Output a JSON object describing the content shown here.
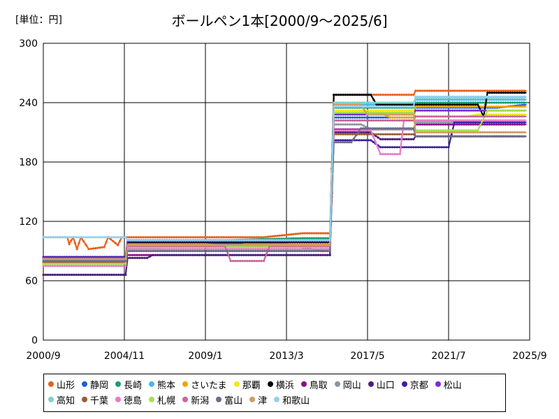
{
  "unit_label": "[単位：円]",
  "title": "ボールペン1本[2000/9～2025/6]",
  "chart_data": {
    "type": "line",
    "title": "ボールペン1本[2000/9～2025/6]",
    "xlabel": "",
    "ylabel": "",
    "ylim": [
      0,
      300
    ],
    "xlim": [
      2000.667,
      2025.667
    ],
    "grid": true,
    "legend_position": "bottom",
    "y_ticks": [
      0,
      60,
      120,
      180,
      240,
      300
    ],
    "x_ticks": [
      {
        "label": "2000/9",
        "x": 2000.667
      },
      {
        "label": "2004/11",
        "x": 2004.833
      },
      {
        "label": "2009/1",
        "x": 2009.0
      },
      {
        "label": "2013/3",
        "x": 2013.167
      },
      {
        "label": "2017/5",
        "x": 2017.333
      },
      {
        "label": "2021/7",
        "x": 2021.5
      },
      {
        "label": "2025/9",
        "x": 2025.667
      }
    ],
    "series": [
      {
        "name": "山形",
        "color": "#e8601c",
        "points": [
          [
            2000.67,
            104
          ],
          [
            2001.9,
            104
          ],
          [
            2002.0,
            97
          ],
          [
            2002.2,
            104
          ],
          [
            2002.4,
            92
          ],
          [
            2002.6,
            104
          ],
          [
            2003.0,
            92
          ],
          [
            2003.8,
            94
          ],
          [
            2004.0,
            104
          ],
          [
            2004.5,
            96
          ],
          [
            2004.7,
            104
          ],
          [
            2008.0,
            104
          ],
          [
            2012.0,
            104
          ],
          [
            2014.0,
            108
          ],
          [
            2015.4,
            108
          ],
          [
            2015.6,
            248
          ],
          [
            2018.5,
            248
          ],
          [
            2019.7,
            248
          ],
          [
            2019.8,
            252
          ],
          [
            2023.5,
            252
          ],
          [
            2025.5,
            252
          ]
        ]
      },
      {
        "name": "静岡",
        "color": "#1f5fd6",
        "points": [
          [
            2000.67,
            82
          ],
          [
            2004.9,
            82
          ],
          [
            2005.0,
            98
          ],
          [
            2009.0,
            98
          ],
          [
            2013.0,
            98
          ],
          [
            2015.0,
            90
          ],
          [
            2015.4,
            90
          ],
          [
            2015.6,
            225
          ],
          [
            2019.7,
            225
          ],
          [
            2019.8,
            235
          ],
          [
            2024.0,
            235
          ],
          [
            2025.5,
            238
          ]
        ]
      },
      {
        "name": "長崎",
        "color": "#1d9e6e",
        "points": [
          [
            2000.67,
            79
          ],
          [
            2003.5,
            79
          ],
          [
            2004.9,
            79
          ],
          [
            2005.0,
            101
          ],
          [
            2010.0,
            101
          ],
          [
            2014.0,
            103
          ],
          [
            2015.4,
            103
          ],
          [
            2015.6,
            235
          ],
          [
            2019.7,
            235
          ],
          [
            2019.8,
            240
          ],
          [
            2025.5,
            240
          ]
        ]
      },
      {
        "name": "熊本",
        "color": "#4ab8e8",
        "points": [
          [
            2000.67,
            84
          ],
          [
            2004.9,
            84
          ],
          [
            2005.0,
            100
          ],
          [
            2012.0,
            100
          ],
          [
            2015.4,
            100
          ],
          [
            2015.6,
            238
          ],
          [
            2019.7,
            238
          ],
          [
            2019.8,
            243
          ],
          [
            2025.5,
            243
          ]
        ]
      },
      {
        "name": "さいたま",
        "color": "#f0a30a",
        "points": [
          [
            2000.67,
            78
          ],
          [
            2004.9,
            78
          ],
          [
            2005.0,
            97
          ],
          [
            2009.0,
            97
          ],
          [
            2010.5,
            94
          ],
          [
            2011.0,
            97
          ],
          [
            2015.4,
            97
          ],
          [
            2015.6,
            230
          ],
          [
            2018.0,
            230
          ],
          [
            2018.5,
            225
          ],
          [
            2019.7,
            225
          ],
          [
            2019.8,
            236
          ],
          [
            2025.5,
            236
          ]
        ]
      },
      {
        "name": "那覇",
        "color": "#f5e61a",
        "points": [
          [
            2000.67,
            80
          ],
          [
            2004.9,
            80
          ],
          [
            2005.0,
            95
          ],
          [
            2015.4,
            95
          ],
          [
            2015.6,
            232
          ],
          [
            2018.0,
            232
          ],
          [
            2019.7,
            232
          ],
          [
            2019.8,
            226
          ],
          [
            2022.5,
            226
          ],
          [
            2023.0,
            228
          ],
          [
            2025.5,
            228
          ]
        ]
      },
      {
        "name": "横浜",
        "color": "#000000",
        "points": [
          [
            2000.67,
            83
          ],
          [
            2004.9,
            83
          ],
          [
            2005.0,
            99
          ],
          [
            2015.4,
            99
          ],
          [
            2015.6,
            248
          ],
          [
            2017.5,
            248
          ],
          [
            2017.8,
            238
          ],
          [
            2018.0,
            238
          ],
          [
            2023.0,
            238
          ],
          [
            2023.3,
            226
          ],
          [
            2023.5,
            250
          ],
          [
            2025.5,
            250
          ]
        ]
      },
      {
        "name": "鳥取",
        "color": "#8a0f8a",
        "points": [
          [
            2000.67,
            80
          ],
          [
            2004.9,
            80
          ],
          [
            2005.0,
            86
          ],
          [
            2015.4,
            86
          ],
          [
            2015.6,
            213
          ],
          [
            2019.7,
            213
          ],
          [
            2019.8,
            218
          ],
          [
            2025.5,
            218
          ]
        ]
      },
      {
        "name": "岡山",
        "color": "#8c96a3",
        "points": [
          [
            2000.67,
            82
          ],
          [
            2004.9,
            82
          ],
          [
            2005.0,
            92
          ],
          [
            2015.4,
            92
          ],
          [
            2015.6,
            218
          ],
          [
            2017.0,
            218
          ],
          [
            2017.5,
            213
          ],
          [
            2019.7,
            213
          ],
          [
            2019.8,
            220
          ],
          [
            2025.5,
            220
          ]
        ]
      },
      {
        "name": "山口",
        "color": "#4d1f7a",
        "points": [
          [
            2000.67,
            66
          ],
          [
            2004.9,
            66
          ],
          [
            2005.0,
            83
          ],
          [
            2006.0,
            83
          ],
          [
            2006.3,
            86
          ],
          [
            2015.4,
            86
          ],
          [
            2015.6,
            210
          ],
          [
            2017.5,
            210
          ],
          [
            2018.0,
            203
          ],
          [
            2019.7,
            203
          ],
          [
            2019.8,
            206
          ],
          [
            2023.5,
            206
          ],
          [
            2024.0,
            206
          ],
          [
            2025.5,
            206
          ]
        ]
      },
      {
        "name": "京都",
        "color": "#3d1fa3",
        "points": [
          [
            2000.67,
            84
          ],
          [
            2004.9,
            84
          ],
          [
            2005.0,
            101
          ],
          [
            2015.4,
            101
          ],
          [
            2015.6,
            202
          ],
          [
            2017.5,
            202
          ],
          [
            2018.0,
            195
          ],
          [
            2019.7,
            195
          ],
          [
            2021.5,
            195
          ],
          [
            2021.8,
            220
          ],
          [
            2025.5,
            220
          ]
        ]
      },
      {
        "name": "松山",
        "color": "#7b2fd0",
        "points": [
          [
            2000.67,
            83
          ],
          [
            2004.9,
            83
          ],
          [
            2005.0,
            100
          ],
          [
            2015.4,
            100
          ],
          [
            2015.6,
            228
          ],
          [
            2019.7,
            228
          ],
          [
            2019.8,
            232
          ],
          [
            2025.5,
            232
          ]
        ]
      },
      {
        "name": "高知",
        "color": "#7dd1c8",
        "points": [
          [
            2000.67,
            81
          ],
          [
            2004.9,
            81
          ],
          [
            2005.0,
            93
          ],
          [
            2006.5,
            93
          ],
          [
            2007.0,
            95
          ],
          [
            2015.4,
            95
          ],
          [
            2015.6,
            240
          ],
          [
            2019.7,
            240
          ],
          [
            2019.8,
            245
          ],
          [
            2025.5,
            245
          ]
        ]
      },
      {
        "name": "千葉",
        "color": "#9c5a32",
        "points": [
          [
            2000.67,
            79
          ],
          [
            2004.9,
            79
          ],
          [
            2005.0,
            96
          ],
          [
            2015.4,
            96
          ],
          [
            2015.6,
            208
          ],
          [
            2019.7,
            208
          ],
          [
            2019.8,
            206
          ],
          [
            2025.5,
            206
          ]
        ]
      },
      {
        "name": "徳島",
        "color": "#e879c9",
        "points": [
          [
            2000.67,
            75
          ],
          [
            2004.9,
            75
          ],
          [
            2005.0,
            92
          ],
          [
            2015.4,
            92
          ],
          [
            2015.6,
            212
          ],
          [
            2017.5,
            212
          ],
          [
            2018.0,
            188
          ],
          [
            2019.0,
            188
          ],
          [
            2019.2,
            222
          ],
          [
            2025.5,
            222
          ]
        ]
      },
      {
        "name": "札幌",
        "color": "#a8e04a",
        "points": [
          [
            2000.67,
            77
          ],
          [
            2004.9,
            77
          ],
          [
            2005.0,
            94
          ],
          [
            2015.4,
            94
          ],
          [
            2015.6,
            230
          ],
          [
            2019.7,
            230
          ],
          [
            2019.8,
            212
          ],
          [
            2023.0,
            212
          ],
          [
            2023.5,
            232
          ],
          [
            2025.5,
            232
          ]
        ]
      },
      {
        "name": "新潟",
        "color": "#c8669c",
        "points": [
          [
            2000.67,
            80
          ],
          [
            2004.9,
            80
          ],
          [
            2005.0,
            95
          ],
          [
            2010.0,
            95
          ],
          [
            2010.3,
            80
          ],
          [
            2012.0,
            80
          ],
          [
            2012.3,
            95
          ],
          [
            2015.4,
            95
          ],
          [
            2015.6,
            222
          ],
          [
            2019.7,
            222
          ],
          [
            2019.8,
            226
          ],
          [
            2025.5,
            226
          ]
        ]
      },
      {
        "name": "富山",
        "color": "#6b6b8c",
        "points": [
          [
            2000.67,
            80
          ],
          [
            2004.9,
            80
          ],
          [
            2005.0,
            90
          ],
          [
            2015.4,
            90
          ],
          [
            2015.6,
            200
          ],
          [
            2016.5,
            200
          ],
          [
            2017.0,
            214
          ],
          [
            2019.7,
            214
          ],
          [
            2019.8,
            206
          ],
          [
            2025.5,
            206
          ]
        ]
      },
      {
        "name": "津",
        "color": "#d09c64",
        "points": [
          [
            2000.67,
            82
          ],
          [
            2004.9,
            82
          ],
          [
            2005.0,
            96
          ],
          [
            2015.4,
            96
          ],
          [
            2015.6,
            238
          ],
          [
            2017.0,
            238
          ],
          [
            2017.3,
            228
          ],
          [
            2019.7,
            228
          ],
          [
            2019.8,
            210
          ],
          [
            2025.5,
            210
          ]
        ]
      },
      {
        "name": "和歌山",
        "color": "#8fd3f0",
        "points": [
          [
            2000.67,
            104
          ],
          [
            2004.9,
            104
          ],
          [
            2005.0,
            101
          ],
          [
            2015.4,
            101
          ],
          [
            2015.6,
            236
          ],
          [
            2019.7,
            236
          ],
          [
            2019.8,
            246
          ],
          [
            2025.5,
            246
          ]
        ]
      }
    ]
  }
}
